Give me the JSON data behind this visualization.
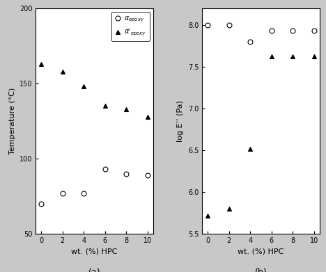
{
  "left": {
    "x": [
      0,
      2,
      4,
      6,
      8,
      10
    ],
    "alpha_epoxy": [
      70,
      77,
      77,
      93,
      90,
      89
    ],
    "alpha_prime_epoxy": [
      163,
      158,
      148,
      135,
      133,
      128
    ],
    "ylabel": "Temperature (°C)",
    "xlabel": "wt. (%) HPC",
    "ylim": [
      50,
      200
    ],
    "yticks": [
      50,
      100,
      150,
      200
    ],
    "label_a": "(a)"
  },
  "right": {
    "x": [
      0,
      2,
      4,
      6,
      8,
      10
    ],
    "circle_vals": [
      8.0,
      8.0,
      7.8,
      7.93,
      7.93,
      7.93
    ],
    "triangle_vals": [
      5.72,
      5.8,
      6.52,
      7.62,
      7.62,
      7.62
    ],
    "ylabel": "log E’’ (Pa)",
    "xlabel": "wt. (%) HPC",
    "ylim": [
      5.5,
      8.2
    ],
    "yticks": [
      5.5,
      6.0,
      6.5,
      7.0,
      7.5,
      8.0
    ],
    "label_b": "(b)"
  },
  "marker_circle": "o",
  "marker_triangle": "^",
  "marker_size": 5,
  "marker_edge_width": 0.8,
  "bg_color": "#c8c8c8",
  "plot_bg": "#ffffff",
  "tick_labelsize": 7,
  "axis_labelsize": 8,
  "legend_fontsize": 7
}
